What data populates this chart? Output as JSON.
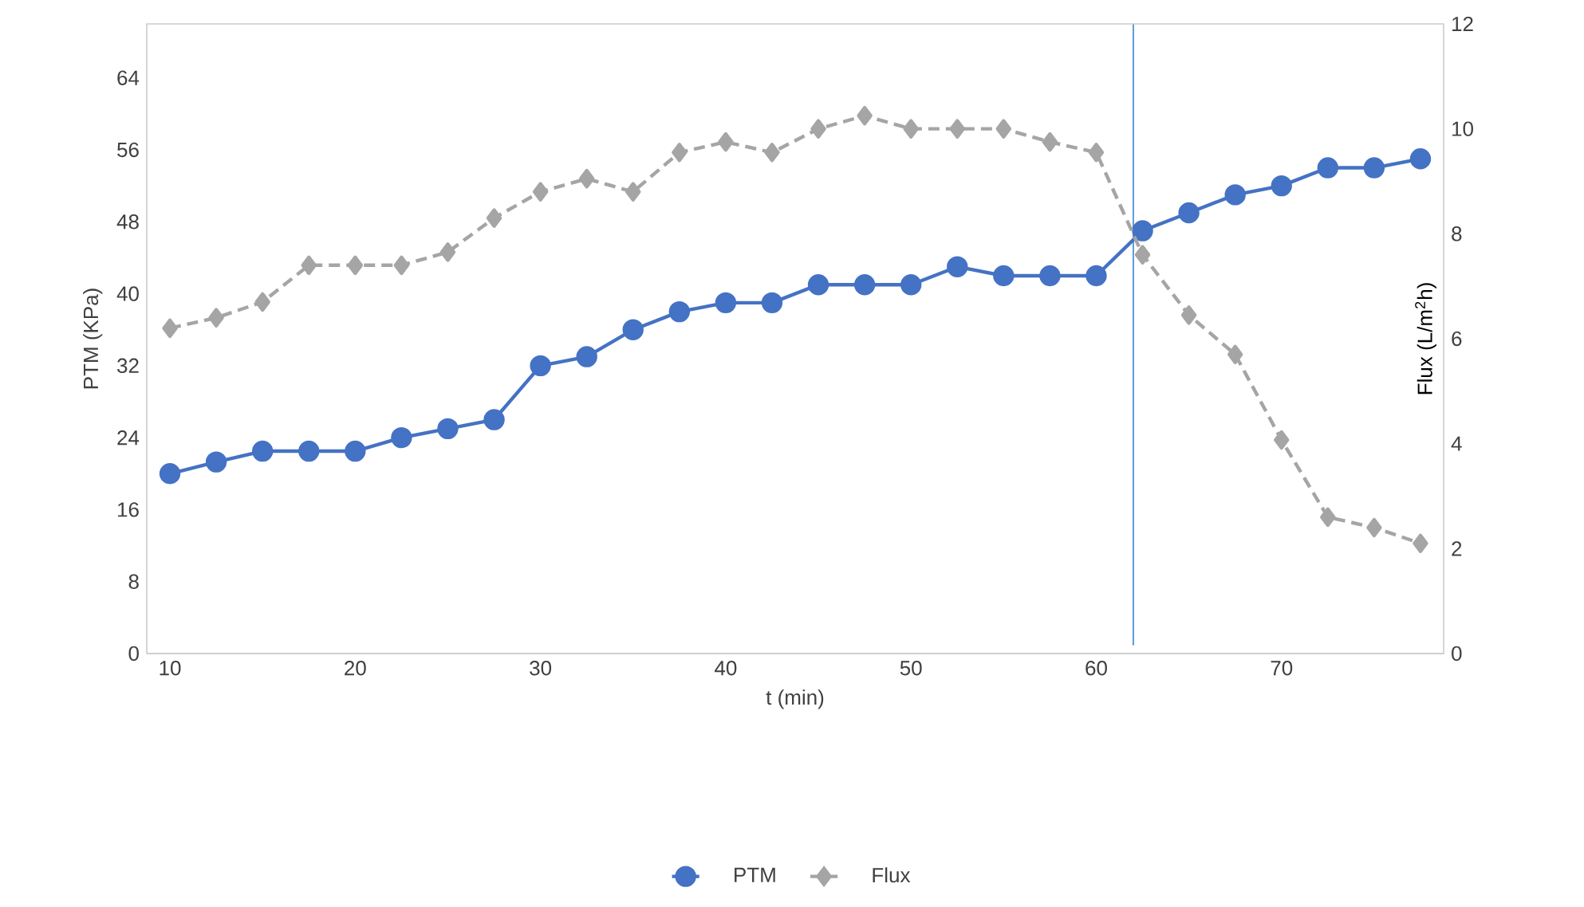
{
  "chart_data": {
    "type": "line",
    "xlabel": "t (min)",
    "ylabel": "PTM (KPa)",
    "y2label": "Flux (L/m$^{2}$h)",
    "x": [
      10,
      12.5,
      15,
      17.5,
      20,
      22.5,
      25,
      27.5,
      30,
      32.5,
      35,
      37.5,
      40,
      42.5,
      45,
      47.5,
      50,
      52.5,
      55,
      57.5,
      60,
      62.5,
      65,
      67.5,
      70,
      72.5,
      75,
      77.5
    ],
    "series": [
      {
        "name": "PTM",
        "color": "#4472c4",
        "marker": "circle",
        "line_style": "solid",
        "values": [
          20,
          21.3,
          22.5,
          22.5,
          22.5,
          24,
          25,
          26,
          32,
          33,
          36,
          38,
          39,
          39,
          41,
          41,
          41,
          43,
          42,
          42,
          42,
          47,
          49,
          51,
          52,
          54,
          54,
          55
        ]
      },
      {
        "name": "Flux",
        "color": "#a5a5a5",
        "marker": "diamond",
        "line_style": "dashed",
        "axis": "y2",
        "values": [
          6.2,
          6.4,
          6.7,
          7.4,
          7.4,
          7.4,
          7.65,
          8.3,
          8.8,
          9.05,
          8.8,
          9.55,
          9.75,
          9.55,
          10,
          10.25,
          10,
          10,
          10,
          9.75,
          9.55,
          7.6,
          6.45,
          5.7,
          4.07,
          2.6,
          2.4,
          2.1
        ]
      }
    ],
    "xlim": [
      8.75,
      78.75
    ],
    "xticks": [
      10,
      20,
      30,
      40,
      50,
      60,
      70
    ],
    "ylim": [
      0,
      70
    ],
    "yticks": [
      0,
      8,
      16,
      24,
      32,
      40,
      48,
      56,
      64
    ],
    "y2lim": [
      0,
      12
    ],
    "y2ticks": [
      0,
      2,
      4,
      6,
      8,
      10,
      12
    ],
    "ref_lines": [
      {
        "axis": "x",
        "value": 62,
        "color": "#5b9bd5"
      }
    ],
    "grid": false,
    "legend": "bottom"
  }
}
